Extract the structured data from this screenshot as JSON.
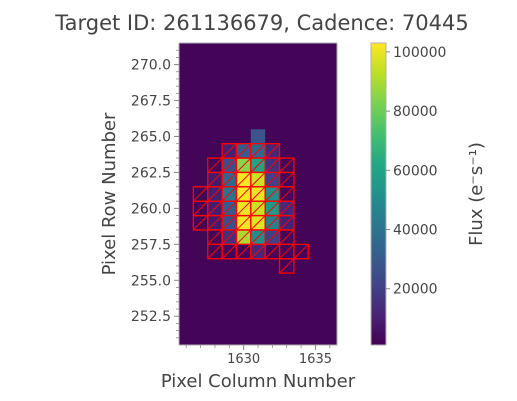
{
  "chart_data": {
    "type": "heatmap",
    "title": "Target ID: 261136679, Cadence: 70445",
    "xlabel": "Pixel Column Number",
    "ylabel": "Pixel Row Number",
    "xlim": [
      1625.5,
      1636.5
    ],
    "ylim": [
      250.5,
      271.5
    ],
    "xticks": [
      1630,
      1635
    ],
    "xtick_labels": [
      "1630",
      "1635"
    ],
    "yticks": [
      252.5,
      255.0,
      257.5,
      260.0,
      262.5,
      265.0,
      267.5,
      270.0
    ],
    "ytick_labels": [
      "252.5",
      "255.0",
      "257.5",
      "260.0",
      "262.5",
      "265.0",
      "267.5",
      "270.0"
    ],
    "background_flux": 2000,
    "colormap": "viridis",
    "colorbar": {
      "label": "Flux (e⁻s⁻¹)",
      "range": [
        1000,
        103000
      ],
      "ticks": [
        20000,
        40000,
        60000,
        80000,
        100000
      ],
      "tick_labels": [
        "20000",
        "40000",
        "60000",
        "80000",
        "100000"
      ]
    },
    "pixels": [
      {
        "col": 1631,
        "row": 265,
        "flux": 28000
      },
      {
        "col": 1629,
        "row": 264,
        "flux": 10000
      },
      {
        "col": 1630,
        "row": 264,
        "flux": 30000
      },
      {
        "col": 1631,
        "row": 264,
        "flux": 35000
      },
      {
        "col": 1632,
        "row": 264,
        "flux": 12000
      },
      {
        "col": 1629,
        "row": 263,
        "flux": 25000
      },
      {
        "col": 1630,
        "row": 263,
        "flux": 85000
      },
      {
        "col": 1631,
        "row": 263,
        "flux": 60000
      },
      {
        "col": 1632,
        "row": 263,
        "flux": 15000
      },
      {
        "col": 1628,
        "row": 262,
        "flux": 8000
      },
      {
        "col": 1629,
        "row": 262,
        "flux": 35000
      },
      {
        "col": 1630,
        "row": 262,
        "flux": 102000
      },
      {
        "col": 1631,
        "row": 262,
        "flux": 95000
      },
      {
        "col": 1632,
        "row": 262,
        "flux": 20000
      },
      {
        "col": 1628,
        "row": 261,
        "flux": 10000
      },
      {
        "col": 1629,
        "row": 261,
        "flux": 40000
      },
      {
        "col": 1630,
        "row": 261,
        "flux": 103000
      },
      {
        "col": 1631,
        "row": 261,
        "flux": 100000
      },
      {
        "col": 1632,
        "row": 261,
        "flux": 50000
      },
      {
        "col": 1628,
        "row": 260,
        "flux": 9000
      },
      {
        "col": 1629,
        "row": 260,
        "flux": 30000
      },
      {
        "col": 1630,
        "row": 260,
        "flux": 100000
      },
      {
        "col": 1631,
        "row": 260,
        "flux": 95000
      },
      {
        "col": 1632,
        "row": 260,
        "flux": 55000
      },
      {
        "col": 1633,
        "row": 260,
        "flux": 12000
      },
      {
        "col": 1628,
        "row": 259,
        "flux": 8000
      },
      {
        "col": 1629,
        "row": 259,
        "flux": 25000
      },
      {
        "col": 1630,
        "row": 259,
        "flux": 102000
      },
      {
        "col": 1631,
        "row": 259,
        "flux": 98000
      },
      {
        "col": 1632,
        "row": 259,
        "flux": 45000
      },
      {
        "col": 1633,
        "row": 259,
        "flux": 10000
      },
      {
        "col": 1629,
        "row": 258,
        "flux": 15000
      },
      {
        "col": 1630,
        "row": 258,
        "flux": 90000
      },
      {
        "col": 1631,
        "row": 258,
        "flux": 50000
      },
      {
        "col": 1632,
        "row": 258,
        "flux": 20000
      },
      {
        "col": 1631,
        "row": 257,
        "flux": 12000
      }
    ],
    "aperture_mask": [
      [
        1629,
        264
      ],
      [
        1630,
        264
      ],
      [
        1631,
        264
      ],
      [
        1632,
        264
      ],
      [
        1628,
        263
      ],
      [
        1629,
        263
      ],
      [
        1630,
        263
      ],
      [
        1631,
        263
      ],
      [
        1632,
        263
      ],
      [
        1633,
        263
      ],
      [
        1628,
        262
      ],
      [
        1629,
        262
      ],
      [
        1630,
        262
      ],
      [
        1631,
        262
      ],
      [
        1632,
        262
      ],
      [
        1633,
        262
      ],
      [
        1627,
        261
      ],
      [
        1628,
        261
      ],
      [
        1629,
        261
      ],
      [
        1630,
        261
      ],
      [
        1631,
        261
      ],
      [
        1632,
        261
      ],
      [
        1633,
        261
      ],
      [
        1627,
        260
      ],
      [
        1628,
        260
      ],
      [
        1629,
        260
      ],
      [
        1630,
        260
      ],
      [
        1631,
        260
      ],
      [
        1632,
        260
      ],
      [
        1633,
        260
      ],
      [
        1627,
        259
      ],
      [
        1628,
        259
      ],
      [
        1629,
        259
      ],
      [
        1630,
        259
      ],
      [
        1631,
        259
      ],
      [
        1632,
        259
      ],
      [
        1633,
        259
      ],
      [
        1628,
        258
      ],
      [
        1629,
        258
      ],
      [
        1630,
        258
      ],
      [
        1631,
        258
      ],
      [
        1632,
        258
      ],
      [
        1633,
        258
      ],
      [
        1628,
        257
      ],
      [
        1629,
        257
      ],
      [
        1630,
        257
      ],
      [
        1631,
        257
      ],
      [
        1632,
        257
      ],
      [
        1633,
        257
      ],
      [
        1634,
        257
      ],
      [
        1633,
        256
      ]
    ],
    "colors": {
      "mask_edge": "#ff0000",
      "frame": "#b0b0b0",
      "text": "#444444"
    }
  }
}
